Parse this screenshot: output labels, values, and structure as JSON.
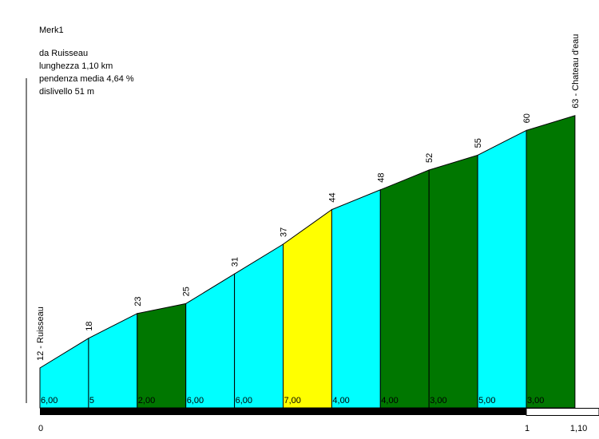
{
  "info": {
    "name": "Merk1",
    "from": "da Ruisseau",
    "length": "lunghezza 1,10 km",
    "gradient": "pendenza media 4,64 %",
    "climb": "dislivello 51 m"
  },
  "chart_data": {
    "type": "area",
    "title": "Merk1",
    "xlabel": "",
    "ylabel": "",
    "x_ticks": [
      "0",
      "1",
      "1,10"
    ],
    "x": [
      0,
      0.1,
      0.2,
      0.3,
      0.4,
      0.5,
      0.6,
      0.7,
      0.8,
      0.9,
      1.0,
      1.1
    ],
    "elevation": [
      12,
      18,
      23,
      25,
      31,
      37,
      44,
      48,
      52,
      55,
      60,
      63
    ],
    "point_labels": [
      "12 - Ruisseau",
      "18",
      "23",
      "25",
      "31",
      "37",
      "44",
      "48",
      "52",
      "55",
      "60",
      "63 - Chateau d'eau"
    ],
    "segment_gradients": [
      "6,00",
      "5",
      "2,00",
      "6,00",
      "6,00",
      "7,00",
      "4,00",
      "4,00",
      "3,00",
      "5,00",
      "3,00"
    ],
    "segment_colors": [
      "#00ffff",
      "#00ffff",
      "#007700",
      "#00ffff",
      "#00ffff",
      "#ffff00",
      "#00ffff",
      "#007700",
      "#007700",
      "#00ffff",
      "#007700"
    ],
    "colors": {
      "scale_bar": "#000000"
    }
  }
}
